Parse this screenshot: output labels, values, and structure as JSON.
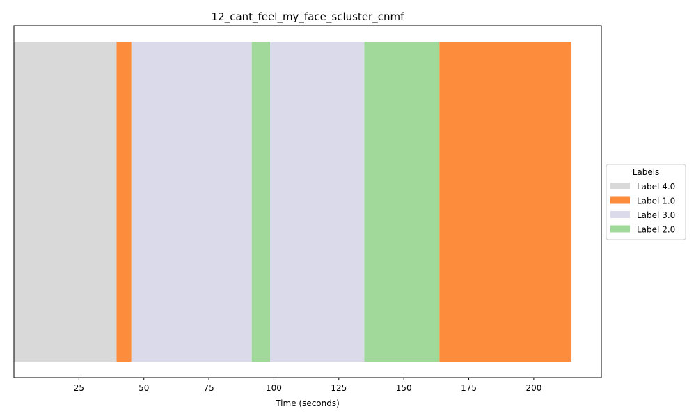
{
  "chart_data": {
    "type": "bar",
    "title": "12_cant_feel_my_face_scluster_cnmf",
    "xlabel": "Time (seconds)",
    "ylabel": "",
    "xlim": [
      0,
      226
    ],
    "xticks": [
      25,
      50,
      75,
      100,
      125,
      150,
      175,
      200
    ],
    "segments": [
      {
        "label": "Label 4.0",
        "start": 0.0,
        "end": 39.5
      },
      {
        "label": "Label 1.0",
        "start": 39.5,
        "end": 45.2
      },
      {
        "label": "Label 3.0",
        "start": 45.2,
        "end": 91.5
      },
      {
        "label": "Label 2.0",
        "start": 91.5,
        "end": 98.6
      },
      {
        "label": "Label 3.0",
        "start": 98.6,
        "end": 134.8
      },
      {
        "label": "Label 2.0",
        "start": 134.8,
        "end": 163.7
      },
      {
        "label": "Label 1.0",
        "start": 163.7,
        "end": 214.5
      }
    ],
    "grid": false,
    "legend": {
      "title": "Labels",
      "placement": "center-right-outside",
      "entries": [
        {
          "label": "Label 4.0",
          "color": "#d9d9d9"
        },
        {
          "label": "Label 1.0",
          "color": "#fd8d3c"
        },
        {
          "label": "Label 3.0",
          "color": "#dadaeb"
        },
        {
          "label": "Label 2.0",
          "color": "#a1d99b"
        }
      ]
    }
  }
}
